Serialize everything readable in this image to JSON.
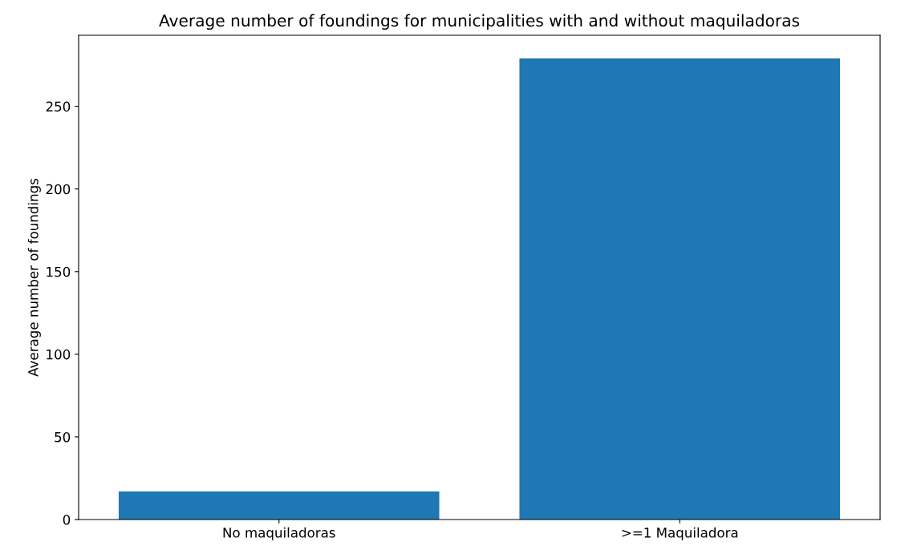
{
  "chart_data": {
    "type": "bar",
    "title": "Average number of foundings for municipalities with and without maquiladoras",
    "ylabel": "Average number of foundings",
    "categories": [
      "No maquiladoras",
      ">=1 Maquiladora"
    ],
    "values": [
      17,
      279
    ],
    "color": "#1f77b4",
    "ylim": [
      0,
      293
    ],
    "yticks": [
      0,
      50,
      100,
      150,
      200,
      250
    ],
    "grid": false
  }
}
